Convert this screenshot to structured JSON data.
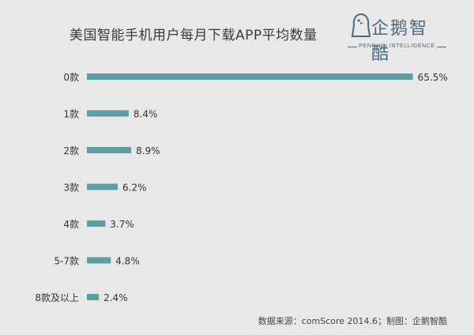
{
  "title": "美国智能手机用户每月下载APP平均数量",
  "logo": {
    "main": "企鹅智酷",
    "sub": "PENGUIN INTELLIGENCE"
  },
  "source": "数据来源：comScore 2014.6；制图：企鹅智酷",
  "colors": {
    "bar": "#5e9ea2",
    "background": "#e8e8e8"
  },
  "chart_data": {
    "type": "bar",
    "orientation": "horizontal",
    "categories": [
      "0款",
      "1款",
      "2款",
      "3款",
      "4款",
      "5-7款",
      "8款及以上"
    ],
    "values": [
      65.5,
      8.4,
      8.9,
      6.2,
      3.7,
      4.8,
      2.4
    ],
    "value_labels": [
      "65.5%",
      "8.4%",
      "8.9%",
      "6.2%",
      "3.7%",
      "4.8%",
      "2.4%"
    ],
    "unit": "%",
    "grid": false,
    "legend": false
  }
}
